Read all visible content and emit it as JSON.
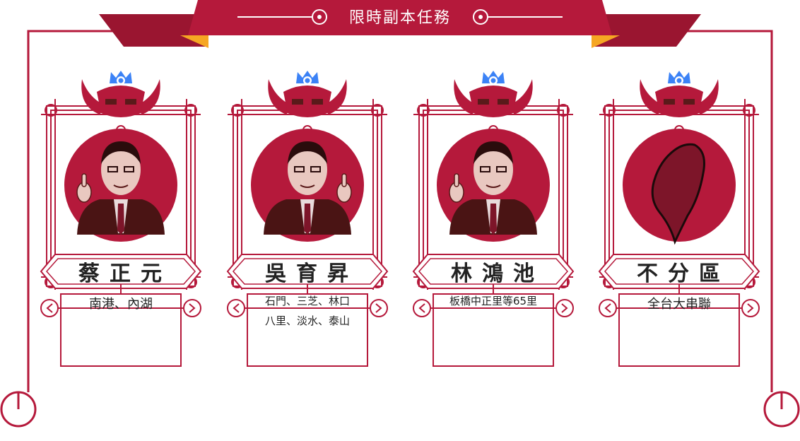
{
  "banner": {
    "title": "限時副本任務"
  },
  "colors": {
    "primary": "#b5193b",
    "dark": "#9a1530",
    "accent": "#f6a623",
    "portrait_shadow": "#5a1a1a",
    "badge": "#3b82f6"
  },
  "cards": [
    {
      "name": "蔡正元",
      "area_lines": [
        "南港、內湖"
      ],
      "portrait": "cai-portrait",
      "compact": false
    },
    {
      "name": "吳育昇",
      "area_lines": [
        "石門、三芝、林口",
        "八里、淡水、泰山"
      ],
      "portrait": "wu-portrait",
      "compact": true
    },
    {
      "name": "林鴻池",
      "area_lines": [
        "板橋中正里等65里"
      ],
      "portrait": "lin-portrait",
      "compact": true
    },
    {
      "name": "不分區",
      "area_lines": [
        "全台大串聯"
      ],
      "portrait": "taiwan-map",
      "compact": false
    }
  ]
}
